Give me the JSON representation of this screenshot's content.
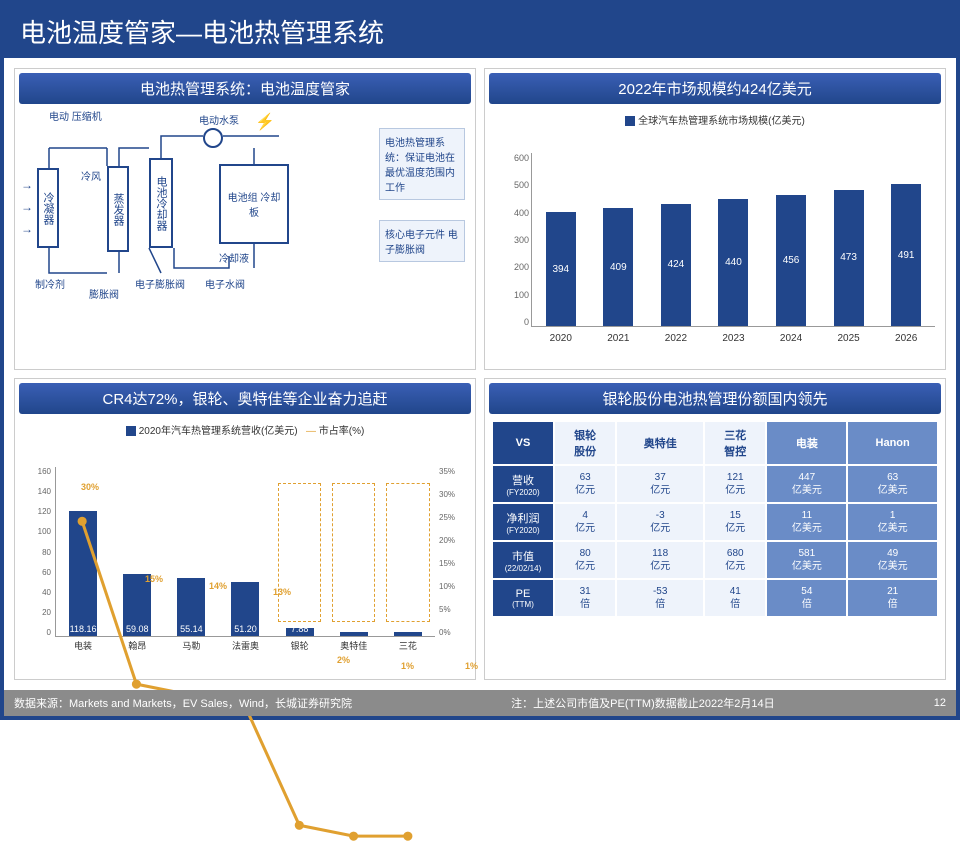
{
  "title": "电池温度管家—电池热管理系统",
  "panel1": {
    "title": "电池热管理系统：电池温度管家",
    "labels": {
      "compressor": "电动\n压缩机",
      "condenser": "冷凝器",
      "cold_air": "冷风",
      "evaporator": "蒸发器",
      "cooler": "电池冷却器",
      "pump": "电动水泵",
      "plate": "电池组\n冷却板",
      "refrigerant": "制冷剂",
      "exp_valve": "膨胀阀",
      "e_exp_valve": "电子膨胀阀",
      "e_water_valve": "电子水阀",
      "coolant": "冷却液"
    },
    "note1": "电池热管理系统：保证电池在最优温度范围内工作",
    "note2": "核心电子元件\n电子膨胀阀"
  },
  "panel2": {
    "title": "2022年市场规模约424亿美元",
    "legend": "全球汽车热管理系统市场规模(亿美元)",
    "ylim": [
      0,
      600
    ],
    "ytick": 100,
    "years": [
      "2020",
      "2021",
      "2022",
      "2023",
      "2024",
      "2025",
      "2026"
    ],
    "values": [
      394,
      409,
      424,
      440,
      456,
      473,
      491
    ],
    "bar_color": "#21468b"
  },
  "panel3": {
    "title": "CR4达72%，银轮、奥特佳等企业奋力追赶",
    "legend_bar": "2020年汽车热管理系统营收(亿美元)",
    "legend_line": "市占率(%)",
    "cats": [
      "电装",
      "翰昂",
      "马勒",
      "法雷奥",
      "银轮",
      "奥特佳",
      "三花"
    ],
    "bars": [
      118.16,
      59.08,
      55.14,
      51.2,
      7.88,
      3.94,
      3.94
    ],
    "line": [
      30,
      15,
      14,
      13,
      2,
      1,
      1
    ],
    "ylim_l": [
      0,
      160
    ],
    "ytick_l": 20,
    "ylim_r": [
      0,
      35
    ],
    "ytick_r": 5,
    "dashed_from": 4
  },
  "panel4": {
    "title": "银轮股份电池热管理份额国内领先",
    "cols": [
      "VS",
      "银轮\n股份",
      "奥特佳",
      "三花\n智控",
      "电装",
      "Hanon"
    ],
    "rows": [
      {
        "h": "营收",
        "sub": "(FY2020)",
        "d": [
          "63\n亿元",
          "37\n亿元",
          "121\n亿元",
          "447\n亿美元",
          "63\n亿美元"
        ]
      },
      {
        "h": "净利润",
        "sub": "(FY2020)",
        "d": [
          "4\n亿元",
          "-3\n亿元",
          "15\n亿元",
          "11\n亿美元",
          "1\n亿美元"
        ]
      },
      {
        "h": "市值",
        "sub": "(22/02/14)",
        "d": [
          "80\n亿元",
          "118\n亿元",
          "680\n亿元",
          "581\n亿美元",
          "49\n亿美元"
        ]
      },
      {
        "h": "PE",
        "sub": "(TTM)",
        "d": [
          "31\n倍",
          "-53\n倍",
          "41\n倍",
          "54\n倍",
          "21\n倍"
        ]
      }
    ]
  },
  "footer": {
    "src": "数据来源：Markets and Markets，EV Sales，Wind，长城证券研究院",
    "note": "注：上述公司市值及PE(TTM)数据截止2022年2月14日",
    "page": "12"
  }
}
